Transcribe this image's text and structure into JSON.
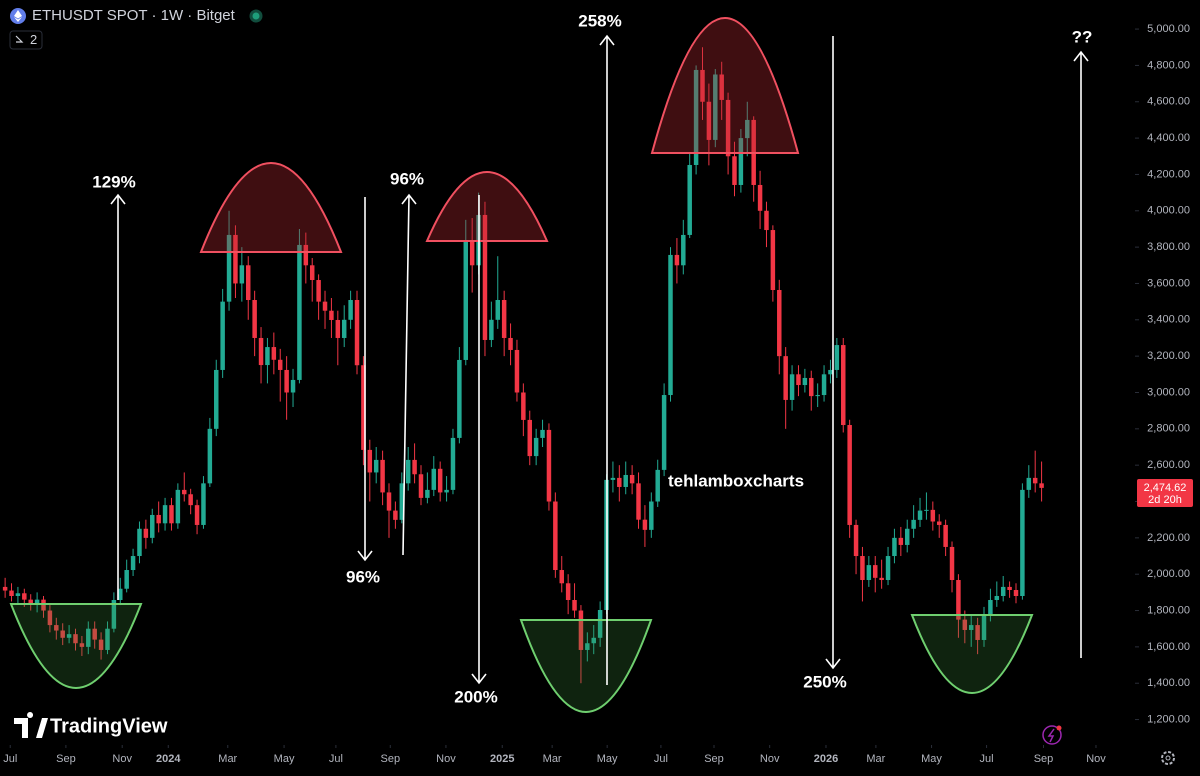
{
  "chart_data": {
    "type": "candlestick",
    "symbol_title": "ETHUSDT SPOT · 1W · Bitget",
    "indicator_count": "2",
    "brand": "TradingView",
    "up_color": "#22ab94",
    "down_color": "#f23645",
    "grid": false,
    "open": [
      1930,
      1910,
      1880,
      1895,
      1860,
      1840,
      1860,
      1800,
      1720,
      1690,
      1650,
      1670,
      1620,
      1600,
      1700,
      1640,
      1583,
      1700,
      1858,
      1920,
      2023,
      2100,
      2250,
      2200,
      2326,
      2280,
      2380,
      2280,
      2464,
      2440,
      2380,
      2271,
      2500,
      2800,
      3124,
      3500,
      3867,
      3600,
      3700,
      3509,
      3300,
      3151,
      3250,
      3180,
      3124,
      3000,
      3069,
      3812,
      3700,
      3619,
      3500,
      3450,
      3399,
      3300,
      3400,
      3509,
      3150,
      2684,
      2560,
      2629,
      2450,
      2350,
      2299,
      2500,
      2629,
      2550,
      2420,
      2464,
      2580,
      2450,
      2464,
      2750,
      3179,
      3839,
      3700,
      3977,
      3289,
      3400,
      3509,
      3300,
      3234,
      3000,
      2849,
      2650,
      2750,
      2794,
      2400,
      2023,
      1950,
      1858,
      1800,
      1583,
      1620,
      1650,
      1803,
      2519,
      2530,
      2480,
      2546,
      2500,
      2300,
      2244,
      2400,
      2574,
      2986,
      3757,
      3700,
      3867,
      4252,
      4775,
      4600,
      4390,
      4750,
      4610,
      4300,
      4142,
      4400,
      4500,
      4142,
      4000,
      3894,
      3564,
      3200,
      2959,
      3100,
      3041,
      3080,
      2980,
      2986,
      3100,
      3124,
      3261,
      2821,
      2271,
      2100,
      1968,
      2050,
      1980,
      1968,
      2100,
      2200,
      2161,
      2250,
      2299,
      2350,
      2354,
      2290,
      2271,
      2150,
      1968,
      1750,
      1693,
      1720,
      1638,
      1780,
      1858,
      1880,
      1930,
      1913,
      1880,
      2464,
      2530,
      2500
    ],
    "high": [
      1980,
      1950,
      1930,
      1920,
      1890,
      1900,
      1880,
      1830,
      1760,
      1730,
      1720,
      1700,
      1660,
      1740,
      1740,
      1680,
      1740,
      1900,
      1980,
      2080,
      2140,
      2290,
      2300,
      2360,
      2400,
      2420,
      2420,
      2500,
      2560,
      2470,
      2410,
      2540,
      2860,
      3180,
      3570,
      4000,
      3920,
      3800,
      3750,
      3560,
      3360,
      3300,
      3330,
      3240,
      3200,
      3130,
      3900,
      3880,
      3740,
      3650,
      3560,
      3520,
      3450,
      3480,
      3560,
      3560,
      3200,
      2740,
      2700,
      2680,
      2500,
      2400,
      2560,
      2700,
      2720,
      2600,
      2560,
      2650,
      2620,
      2540,
      2800,
      3250,
      3950,
      3960,
      4100,
      4050,
      3500,
      3750,
      3560,
      3380,
      3290,
      3050,
      2900,
      2800,
      2850,
      2830,
      2450,
      2100,
      2000,
      1950,
      1830,
      1680,
      1720,
      1850,
      2550,
      2620,
      2600,
      2620,
      2600,
      2560,
      2380,
      2450,
      2630,
      3050,
      3800,
      3850,
      3950,
      4320,
      4800,
      4900,
      4700,
      4780,
      4820,
      4650,
      4380,
      4450,
      4600,
      4520,
      4220,
      4050,
      3920,
      3620,
      3250,
      3150,
      3150,
      3130,
      3120,
      3050,
      3150,
      3180,
      3300,
      3300,
      2850,
      2300,
      2150,
      2100,
      2100,
      2080,
      2150,
      2250,
      2260,
      2300,
      2380,
      2420,
      2450,
      2400,
      2330,
      2300,
      2180,
      2000,
      1800,
      1780,
      1760,
      1820,
      1920,
      1960,
      1990,
      1960,
      1950,
      2500,
      2600,
      2680,
      2620
    ],
    "low": [
      1870,
      1850,
      1840,
      1820,
      1800,
      1790,
      1760,
      1680,
      1640,
      1610,
      1620,
      1580,
      1550,
      1560,
      1590,
      1530,
      1560,
      1680,
      1830,
      1900,
      1990,
      2060,
      2140,
      2170,
      2230,
      2240,
      2240,
      2250,
      2400,
      2330,
      2220,
      2250,
      2480,
      2760,
      3080,
      3450,
      3520,
      3500,
      3400,
      3200,
      3050,
      3050,
      3100,
      2950,
      2850,
      2920,
      3050,
      3600,
      3500,
      3400,
      3350,
      3300,
      3150,
      3250,
      3350,
      3100,
      2600,
      2400,
      2500,
      2380,
      2200,
      2250,
      2280,
      2460,
      2500,
      2380,
      2390,
      2430,
      2400,
      2400,
      2440,
      2720,
      3150,
      3550,
      3650,
      3200,
      3250,
      3350,
      3200,
      3150,
      2950,
      2760,
      2600,
      2600,
      2700,
      2350,
      1980,
      1900,
      1780,
      1760,
      1400,
      1520,
      1560,
      1600,
      1780,
      2450,
      2400,
      2440,
      2440,
      2250,
      2150,
      2200,
      2370,
      2540,
      2950,
      3600,
      3650,
      3850,
      4200,
      4500,
      4250,
      4350,
      4500,
      4200,
      4080,
      4100,
      4300,
      4050,
      3900,
      3800,
      3500,
      3100,
      2800,
      2900,
      2980,
      3000,
      2900,
      2920,
      2950,
      3050,
      3080,
      2780,
      2200,
      2000,
      1850,
      1930,
      1900,
      1920,
      1940,
      2060,
      2100,
      2120,
      2200,
      2260,
      2300,
      2240,
      2200,
      2100,
      1900,
      1650,
      1620,
      1600,
      1560,
      1600,
      1740,
      1820,
      1850,
      1870,
      1840,
      1860,
      2420,
      2450,
      2400
    ],
    "close": [
      1910,
      1880,
      1895,
      1860,
      1840,
      1860,
      1800,
      1720,
      1690,
      1650,
      1670,
      1620,
      1600,
      1700,
      1640,
      1583,
      1700,
      1858,
      1920,
      2023,
      2100,
      2250,
      2200,
      2326,
      2280,
      2380,
      2280,
      2464,
      2440,
      2380,
      2271,
      2500,
      2800,
      3124,
      3500,
      3867,
      3600,
      3700,
      3509,
      3300,
      3151,
      3250,
      3180,
      3124,
      3000,
      3069,
      3812,
      3700,
      3619,
      3500,
      3450,
      3399,
      3300,
      3400,
      3509,
      3150,
      2684,
      2560,
      2629,
      2450,
      2350,
      2299,
      2500,
      2629,
      2550,
      2420,
      2464,
      2580,
      2450,
      2464,
      2750,
      3179,
      3839,
      3700,
      3977,
      3289,
      3400,
      3509,
      3300,
      3234,
      3000,
      2849,
      2650,
      2750,
      2794,
      2400,
      2023,
      1950,
      1858,
      1800,
      1583,
      1620,
      1650,
      1803,
      2519,
      2530,
      2480,
      2546,
      2500,
      2300,
      2244,
      2400,
      2574,
      2986,
      3757,
      3700,
      3867,
      4252,
      4775,
      4600,
      4390,
      4750,
      4610,
      4300,
      4142,
      4400,
      4500,
      4142,
      4000,
      3894,
      3564,
      3200,
      2959,
      3100,
      3041,
      3080,
      2980,
      2986,
      3100,
      3124,
      3261,
      2821,
      2271,
      2100,
      1968,
      2050,
      1980,
      1968,
      2100,
      2200,
      2161,
      2250,
      2299,
      2350,
      2354,
      2290,
      2271,
      2150,
      1968,
      1750,
      1693,
      1720,
      1638,
      1780,
      1858,
      1880,
      1930,
      1913,
      1880,
      2464,
      2530,
      2500,
      2475
    ],
    "xlim": [
      -0.8,
      176.6
    ],
    "xticks": [
      {
        "value": 0.8,
        "label": "Jul"
      },
      {
        "value": 9.5,
        "label": "Sep"
      },
      {
        "value": 18.3,
        "label": "Nov"
      },
      {
        "value": 25.5,
        "label": "2024"
      },
      {
        "value": 34.8,
        "label": "Mar"
      },
      {
        "value": 43.6,
        "label": "May"
      },
      {
        "value": 51.7,
        "label": "Jul"
      },
      {
        "value": 60.2,
        "label": "Sep"
      },
      {
        "value": 68.9,
        "label": "Nov"
      },
      {
        "value": 77.7,
        "label": "2025"
      },
      {
        "value": 85.5,
        "label": "Mar"
      },
      {
        "value": 94.1,
        "label": "May"
      },
      {
        "value": 102.5,
        "label": "Jul"
      },
      {
        "value": 110.8,
        "label": "Sep"
      },
      {
        "value": 119.5,
        "label": "Nov"
      },
      {
        "value": 128.3,
        "label": "2026"
      },
      {
        "value": 136.1,
        "label": "Mar"
      },
      {
        "value": 144.8,
        "label": "May"
      },
      {
        "value": 153.4,
        "label": "Jul"
      },
      {
        "value": 162.3,
        "label": "Sep"
      },
      {
        "value": 170.5,
        "label": "Nov"
      }
    ],
    "ylim": [
      1060,
      5160
    ],
    "yticks": [
      {
        "value": 1200,
        "label": "1,200.00"
      },
      {
        "value": 1400,
        "label": "1,400.00"
      },
      {
        "value": 1600,
        "label": "1,600.00"
      },
      {
        "value": 1800,
        "label": "1,800.00"
      },
      {
        "value": 2000,
        "label": "2,000.00"
      },
      {
        "value": 2200,
        "label": "2,200.00"
      },
      {
        "value": 2400,
        "label": "2,400.00"
      },
      {
        "value": 2600,
        "label": "2,600.00"
      },
      {
        "value": 2800,
        "label": "2,800.00"
      },
      {
        "value": 3000,
        "label": "3,000.00"
      },
      {
        "value": 3200,
        "label": "3,200.00"
      },
      {
        "value": 3400,
        "label": "3,400.00"
      },
      {
        "value": 3600,
        "label": "3,600.00"
      },
      {
        "value": 3800,
        "label": "3,800.00"
      },
      {
        "value": 4000,
        "label": "4,000.00"
      },
      {
        "value": 4200,
        "label": "4,200.00"
      },
      {
        "value": 4400,
        "label": "4,400.00"
      },
      {
        "value": 4600,
        "label": "4,600.00"
      },
      {
        "value": 4800,
        "label": "4,800.00"
      },
      {
        "value": 5000,
        "label": "5,000.00"
      }
    ],
    "last_price": 2474.62,
    "last_price_label": "2,474.62",
    "countdown": "2d 20h",
    "annotations": [
      "129%",
      "96%",
      "96%",
      "258%",
      "200%",
      "250%",
      "??",
      "tehlamboxcharts"
    ]
  }
}
